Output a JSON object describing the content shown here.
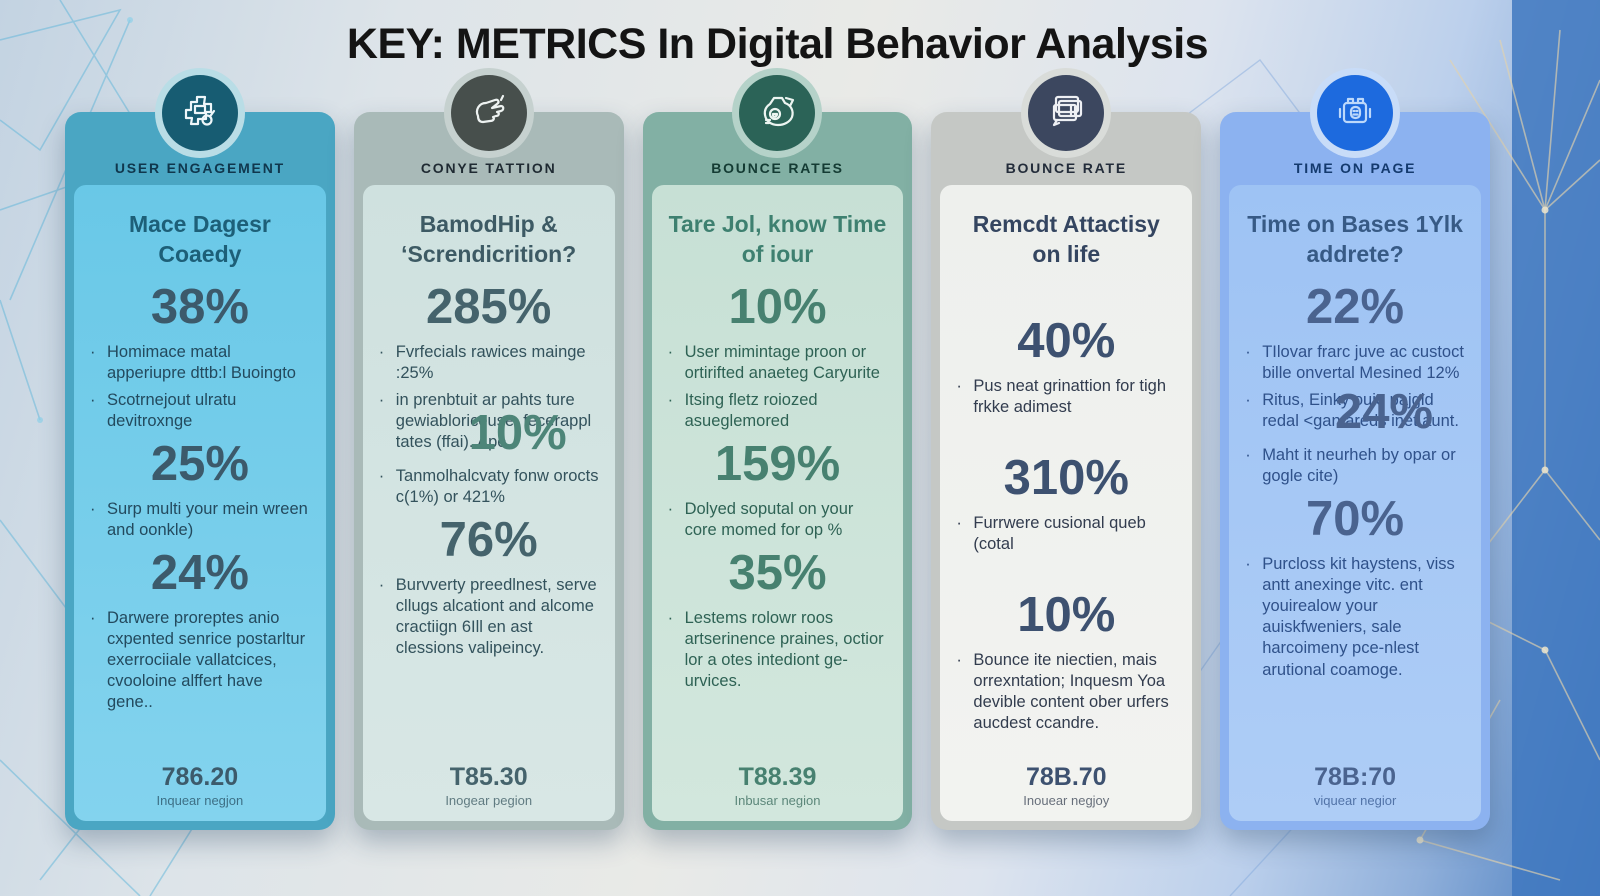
{
  "page_title": {
    "emphasis": "KEY: METRICS",
    "rest": "In Digital Behavior Analysis"
  },
  "cards": [
    {
      "header": "USER ENGAGEMENT",
      "icon": "engagement-puzzle-search-icon",
      "title": "Mace Dagesr Coaedy",
      "blocks": [
        {
          "type": "stat",
          "value": "38%"
        },
        {
          "type": "bullet",
          "text": "Homimace matal apperiupre dttb:l Buoingto"
        },
        {
          "type": "bullet",
          "text": "Scotrnejout ulratu devitroxnge"
        },
        {
          "type": "stat",
          "value": "25%"
        },
        {
          "type": "bullet",
          "text": "Surp multi your mein wreen and oonkle)"
        },
        {
          "type": "stat",
          "value": "24%"
        },
        {
          "type": "bullet",
          "text": "Darwere proreptes anio cxpented senrice postarltur exerrociiale vallatcices, cvooloine alffert have gene.."
        }
      ],
      "footer": {
        "value": "786.20",
        "label": "Inquear negjon"
      },
      "colors": {
        "band": "#4aa6c3",
        "body": "#69c8e7",
        "body2": "#83d3ee",
        "circle": "#175c72",
        "ring": "#b9dde6",
        "glyph": "#eef7fa",
        "header_text": "#10374d",
        "title_text": "#1d5f78",
        "stat_text": "#3c5a6b",
        "body_text": "#234a5e"
      }
    },
    {
      "header": "CONYE TATTION",
      "icon": "conversion-hand-icon",
      "title": "BamodHip & ‘Screndicrition?",
      "blocks": [
        {
          "type": "stat",
          "value": "285%"
        },
        {
          "type": "bullet",
          "text": "Fvrfecials rawices mainge :25%"
        },
        {
          "type": "bullet",
          "text": "in prenbtuit ar pahts ture gewiabloriceuse, fecerappl tates (ffai). Ape."
        },
        {
          "type": "stat",
          "value": "10%",
          "overlap": true,
          "color": "#4d8578"
        },
        {
          "type": "bullet",
          "text": "Tanmolhalcvaty fonw orocts c(1%) or 421%"
        },
        {
          "type": "stat",
          "value": "76%"
        },
        {
          "type": "bullet",
          "text": "Burvverty preedlnest, serve cllugs alcationt and alcome cractiign 6Ill en ast clessions valipeincy."
        }
      ],
      "footer": {
        "value": "T85.30",
        "label": "Inogear pegion"
      },
      "colors": {
        "band": "#a9bab8",
        "body": "#cfe1df",
        "body2": "#d8e7e5",
        "circle": "#474f4c",
        "ring": "#c6d1cf",
        "glyph": "#edf2f1",
        "header_text": "#1f2a32",
        "title_text": "#3d5a64",
        "stat_text": "#45636c",
        "body_text": "#33525c"
      }
    },
    {
      "header": "BOUNCE RATES",
      "icon": "bounce-bag-arrow-icon",
      "title": "Tare Jol, know Time of iour",
      "blocks": [
        {
          "type": "stat",
          "value": "10%"
        },
        {
          "type": "bullet",
          "text": "User mimintage proon or ortirifted anaeteg Caryurite"
        },
        {
          "type": "bullet",
          "text": "Itsing fletz roiozed asueglemored"
        },
        {
          "type": "stat",
          "value": "159%"
        },
        {
          "type": "bullet",
          "text": "Dolyed soputal on your core momed for op %"
        },
        {
          "type": "stat",
          "value": "35%"
        },
        {
          "type": "bullet",
          "text": "Lestems rolowr roos artserinence praines, octior lor a otes intediont ge-urvices."
        }
      ],
      "footer": {
        "value": "T88.39",
        "label": "Inbusar negion"
      },
      "colors": {
        "band": "#82b0a4",
        "body": "#c7e0d5",
        "body2": "#d2e7dd",
        "circle": "#2b6357",
        "ring": "#b5d2c9",
        "glyph": "#ecf5f1",
        "header_text": "#143b33",
        "title_text": "#3e8070",
        "stat_text": "#478170",
        "body_text": "#2e6254"
      }
    },
    {
      "header": "BOUNCE RATE",
      "icon": "chat-stack-icon",
      "title": "Remcdt Attactisy on life",
      "blocks": [
        {
          "type": "stat",
          "value": "40%"
        },
        {
          "type": "bullet",
          "text": "Pus neat grinattion for tigh frkke adimest"
        },
        {
          "type": "stat",
          "value": "310%"
        },
        {
          "type": "bullet",
          "text": "Furrwere cusional queb (cotal"
        },
        {
          "type": "stat",
          "value": "10%"
        },
        {
          "type": "bullet",
          "text": "Bounce ite niectien, mais orrexntation; Inquesm Yoa devible content ober urfers aucdest ccandre."
        }
      ],
      "footer": {
        "value": "78B.70",
        "label": "Inouear negjoy"
      },
      "colors": {
        "band": "#c5c8c5",
        "body": "#eef0ed",
        "body2": "#f2f3f0",
        "circle": "#3c475f",
        "ring": "#d9dcd9",
        "glyph": "#eef0f4",
        "header_text": "#232c3a",
        "title_text": "#344560",
        "stat_text": "#3d5170",
        "body_text": "#323c4e"
      }
    },
    {
      "header": "TIME ON PAGE",
      "icon": "time-on-page-timer-icon",
      "title": "Time on Bases 1Ylk addrete?",
      "blocks": [
        {
          "type": "stat",
          "value": "22%"
        },
        {
          "type": "bullet",
          "text": "TIlovar frarc juve ac custoct bille onvertal Mesined 12%"
        },
        {
          "type": "bullet",
          "text": "Ritus, Einky ouie pajgid redal <gan areds inet aunt."
        },
        {
          "type": "stat",
          "value": "24%",
          "overlap": true
        },
        {
          "type": "bullet",
          "text": "Maht it neurheh by opar or gogle cite)"
        },
        {
          "type": "stat",
          "value": "70%"
        },
        {
          "type": "bullet",
          "text": "Purcloss kit haystens, viss antt anexinge vitc. ent youirealow your auiskfweniers, sale harcoimeny pce-nlest arutional coamoge."
        }
      ],
      "footer": {
        "value": "78B:70",
        "label": "viquear negior"
      },
      "colors": {
        "band": "#8cb2f0",
        "body": "#9ec3f4",
        "body2": "#aecdf6",
        "circle": "#1d6ade",
        "ring": "#c8dcf8",
        "glyph": "#bcd8fb",
        "header_text": "#143a6e",
        "title_text": "#375a85",
        "stat_text": "#4a638f",
        "body_text": "#2f518a"
      }
    }
  ]
}
